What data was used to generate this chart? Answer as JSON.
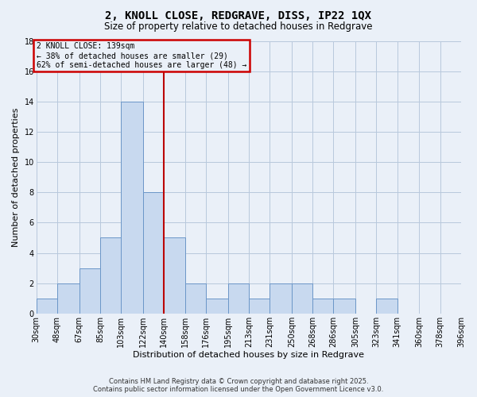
{
  "title": "2, KNOLL CLOSE, REDGRAVE, DISS, IP22 1QX",
  "subtitle": "Size of property relative to detached houses in Redgrave",
  "xlabel": "Distribution of detached houses by size in Redgrave",
  "ylabel": "Number of detached properties",
  "bin_edges": [
    30,
    48,
    67,
    85,
    103,
    122,
    140,
    158,
    176,
    195,
    213,
    231,
    250,
    268,
    286,
    305,
    323,
    341,
    360,
    378,
    396
  ],
  "bar_heights": [
    1,
    2,
    3,
    5,
    14,
    8,
    5,
    2,
    1,
    2,
    1,
    2,
    2,
    1,
    1,
    0,
    1,
    0,
    0,
    0
  ],
  "bar_color": "#c8d9ef",
  "bar_edge_color": "#6b96c8",
  "grid_color": "#b8c8dc",
  "bg_color": "#eaf0f8",
  "vline_x": 140,
  "vline_color": "#bb0000",
  "ylim": [
    0,
    18
  ],
  "annotation_text": "2 KNOLL CLOSE: 139sqm\n← 38% of detached houses are smaller (29)\n62% of semi-detached houses are larger (48) →",
  "annotation_box_color": "#cc0000",
  "footer_line1": "Contains HM Land Registry data © Crown copyright and database right 2025.",
  "footer_line2": "Contains public sector information licensed under the Open Government Licence v3.0.",
  "tick_labels": [
    "30sqm",
    "48sqm",
    "67sqm",
    "85sqm",
    "103sqm",
    "122sqm",
    "140sqm",
    "158sqm",
    "176sqm",
    "195sqm",
    "213sqm",
    "231sqm",
    "250sqm",
    "268sqm",
    "286sqm",
    "305sqm",
    "323sqm",
    "341sqm",
    "360sqm",
    "378sqm",
    "396sqm"
  ],
  "title_fontsize": 10,
  "subtitle_fontsize": 8.5,
  "tick_fontsize": 7,
  "label_fontsize": 8,
  "footer_fontsize": 6
}
